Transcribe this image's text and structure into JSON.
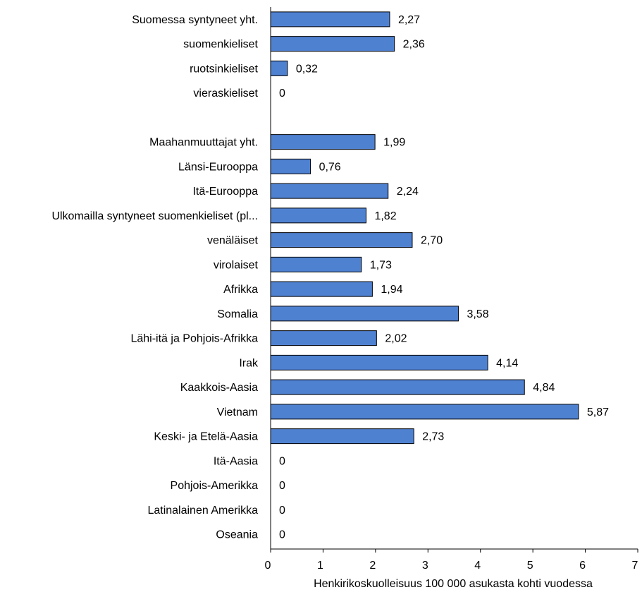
{
  "chart_data": {
    "type": "bar",
    "orientation": "horizontal",
    "categories": [
      "Suomessa syntyneet yht.",
      "suomenkieliset",
      "ruotsinkieliset",
      "vieraskieliset",
      "",
      "Maahanmuuttajat yht.",
      "Länsi-Eurooppa",
      "Itä-Eurooppa",
      "Ulkomailla syntyneet suomenkieliset (pl...",
      "venäläiset",
      "virolaiset",
      "Afrikka",
      "Somalia",
      "Lähi-itä ja Pohjois-Afrikka",
      "Irak",
      "Kaakkois-Aasia",
      "Vietnam",
      "Keski- ja Etelä-Aasia",
      "Itä-Aasia",
      "Pohjois-Amerikka",
      "Latinalainen Amerikka",
      "Oseania"
    ],
    "values": [
      2.27,
      2.36,
      0.32,
      0,
      null,
      1.99,
      0.76,
      2.24,
      1.82,
      2.7,
      1.73,
      1.94,
      3.58,
      2.02,
      4.14,
      4.84,
      5.87,
      2.73,
      0,
      0,
      0,
      0
    ],
    "value_labels": [
      "2,27",
      "2,36",
      "0,32",
      "0",
      "",
      "1,99",
      "0,76",
      "2,24",
      "1,82",
      "2,70",
      "1,73",
      "1,94",
      "3,58",
      "2,02",
      "4,14",
      "4,84",
      "5,87",
      "2,73",
      "0",
      "0",
      "0",
      "0"
    ],
    "xlim": [
      0,
      7
    ],
    "xticks": [
      "0",
      "1",
      "2",
      "3",
      "4",
      "5",
      "6",
      "7"
    ],
    "xlabel": "Henkirikoskuolleisuus  100 000 asukasta  kohti vuodessa",
    "grid": false,
    "bar_color": "#4F81D1",
    "bar_edge_color": "#000000"
  }
}
